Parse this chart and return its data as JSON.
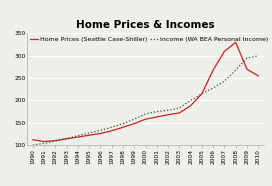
{
  "title": "Home Prices & Incomes",
  "legend_labels": [
    "Home Prices (Seattle Case-Shiller)",
    "Income (WA BEA Personal Income)"
  ],
  "years": [
    1990,
    1991,
    1992,
    1993,
    1994,
    1995,
    1996,
    1997,
    1998,
    1999,
    2000,
    2001,
    2002,
    2003,
    2004,
    2005,
    2006,
    2007,
    2008,
    2009,
    2010
  ],
  "home_prices": [
    112,
    108,
    110,
    114,
    118,
    122,
    126,
    132,
    140,
    148,
    158,
    163,
    168,
    172,
    188,
    215,
    268,
    310,
    330,
    270,
    255
  ],
  "income": [
    100,
    104,
    109,
    115,
    121,
    127,
    133,
    140,
    148,
    158,
    170,
    175,
    178,
    183,
    200,
    215,
    228,
    243,
    268,
    295,
    300
  ],
  "ylim": [
    100,
    350
  ],
  "yticks": [
    100,
    150,
    200,
    250,
    300,
    350
  ],
  "home_price_color": "#cc2222",
  "income_color": "#2a5a2a",
  "background_color": "#eeeeea",
  "grid_color": "#ffffff",
  "title_fontsize": 7.5,
  "legend_fontsize": 4.5,
  "tick_fontsize": 4.2
}
